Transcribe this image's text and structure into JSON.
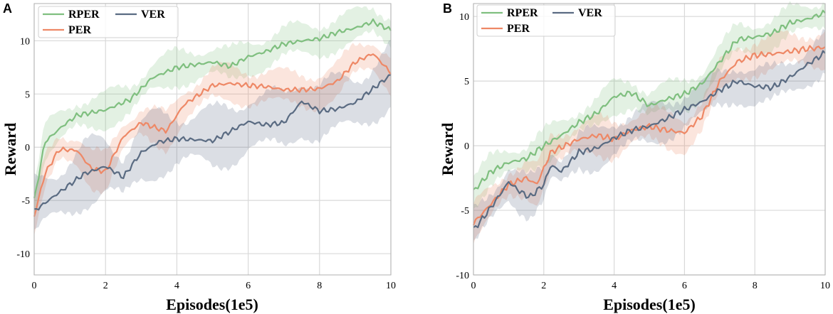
{
  "chart_data": [
    {
      "panel": "A",
      "type": "line",
      "xlabel": "Episodes(1e5)",
      "ylabel": "Reward",
      "xlim": [
        0,
        10
      ],
      "ylim": [
        -12,
        13.5
      ],
      "xticks": [
        0,
        2,
        4,
        6,
        8,
        10
      ],
      "xtick_labels": [
        "0",
        "2",
        "4",
        "6",
        "8",
        "10"
      ],
      "yticks": [
        -10,
        -5,
        0,
        5,
        10
      ],
      "ytick_labels": [
        "-10",
        "-5",
        "0",
        "5",
        "10"
      ],
      "grid": true,
      "legend_position": "top-left",
      "series": [
        {
          "name": "RPER",
          "color": "#7fbf7f",
          "band": 1.7,
          "x": [
            0,
            0.3,
            0.8,
            1.2,
            2,
            2.7,
            3.3,
            4,
            4.6,
            5,
            5.5,
            6,
            6.5,
            7,
            7.5,
            8,
            8.5,
            9,
            9.5,
            10
          ],
          "y": [
            -5,
            0.5,
            2,
            3,
            3.5,
            4.5,
            6.5,
            7.5,
            7.8,
            8,
            7.6,
            8.5,
            9,
            9.7,
            10,
            10.2,
            10.8,
            11.2,
            11.8,
            11
          ]
        },
        {
          "name": "PER",
          "color": "#ee8866",
          "band": 1.8,
          "x": [
            0,
            0.3,
            0.7,
            1.2,
            1.6,
            2,
            2.5,
            3,
            3.7,
            4.2,
            5,
            5.5,
            6,
            6.5,
            7,
            7.5,
            8,
            8.5,
            9,
            9.5,
            10
          ],
          "y": [
            -6.5,
            -2.5,
            -0.2,
            -0.3,
            -2,
            -2.3,
            1,
            2.3,
            1.5,
            4,
            5.8,
            6,
            5.8,
            5.7,
            5.4,
            5.4,
            5.5,
            6.2,
            8,
            8.8,
            7
          ]
        },
        {
          "name": "VER",
          "color": "#5a6b82",
          "band": 3.0,
          "x": [
            0,
            0.8,
            1.4,
            2,
            2.5,
            3,
            3.5,
            4,
            5,
            5.5,
            6,
            6.5,
            7,
            7.5,
            8,
            8.5,
            9,
            9.5,
            10
          ],
          "y": [
            -6,
            -4,
            -2.5,
            -1.8,
            -2.8,
            -0.5,
            0.5,
            0.8,
            0.6,
            1.5,
            2.4,
            2.1,
            2.3,
            4.3,
            3.4,
            3.6,
            4.2,
            5.5,
            6.8
          ]
        }
      ]
    },
    {
      "panel": "B",
      "type": "line",
      "xlabel": "Episodes(1e5)",
      "ylabel": "Reward",
      "xlim": [
        0,
        10
      ],
      "ylim": [
        -10,
        11
      ],
      "xticks": [
        0,
        2,
        4,
        6,
        8,
        10
      ],
      "xtick_labels": [
        "0",
        "2",
        "4",
        "6",
        "8",
        "10"
      ],
      "yticks": [
        -10,
        -5,
        0,
        5,
        10
      ],
      "ytick_labels": [
        "-10",
        "-5",
        "0",
        "5",
        "10"
      ],
      "grid": true,
      "legend_position": "top-left",
      "series": [
        {
          "name": "RPER",
          "color": "#7fbf7f",
          "band": 1.3,
          "x": [
            0,
            0.5,
            1,
            1.5,
            2,
            2.5,
            3,
            3.5,
            4,
            4.5,
            5,
            5.5,
            6,
            6.5,
            7,
            7.5,
            8,
            8.5,
            9,
            9.5,
            10
          ],
          "y": [
            -3.5,
            -2,
            -1.3,
            -1,
            0,
            0.8,
            1.8,
            2.5,
            3.8,
            4.1,
            3.1,
            3.6,
            4,
            4.8,
            6.5,
            8.2,
            8.4,
            8.7,
            9.5,
            9.8,
            10.3
          ]
        },
        {
          "name": "PER",
          "color": "#ee8866",
          "band": 1.5,
          "x": [
            0,
            0.5,
            1,
            1.5,
            1.8,
            2.2,
            3,
            3.5,
            4,
            4.5,
            5,
            5.5,
            6,
            6.5,
            7,
            7.5,
            8,
            8.5,
            9,
            9.5,
            10
          ],
          "y": [
            -6,
            -4.5,
            -3,
            -2.5,
            -3,
            -0.5,
            0.5,
            0.8,
            0.5,
            1.2,
            1.5,
            1.2,
            1,
            2.3,
            5,
            6.5,
            7,
            7.1,
            7.3,
            7.5,
            7.6
          ]
        },
        {
          "name": "VER",
          "color": "#5a6b82",
          "band": 1.6,
          "x": [
            0,
            0.3,
            0.7,
            1,
            1.3,
            1.6,
            2,
            2.2,
            2.5,
            3,
            3.5,
            4,
            4.5,
            5,
            5.5,
            6,
            6.5,
            7,
            7.5,
            8,
            8.5,
            9,
            9.5,
            10
          ],
          "y": [
            -6.5,
            -5.5,
            -4,
            -2.8,
            -3.5,
            -4,
            -3,
            -1.5,
            -2,
            -0.5,
            -0.2,
            0.6,
            1.2,
            1.5,
            2.1,
            2.8,
            3.4,
            4.3,
            5,
            4.6,
            4.5,
            5.3,
            6.3,
            7.2
          ]
        }
      ]
    }
  ]
}
